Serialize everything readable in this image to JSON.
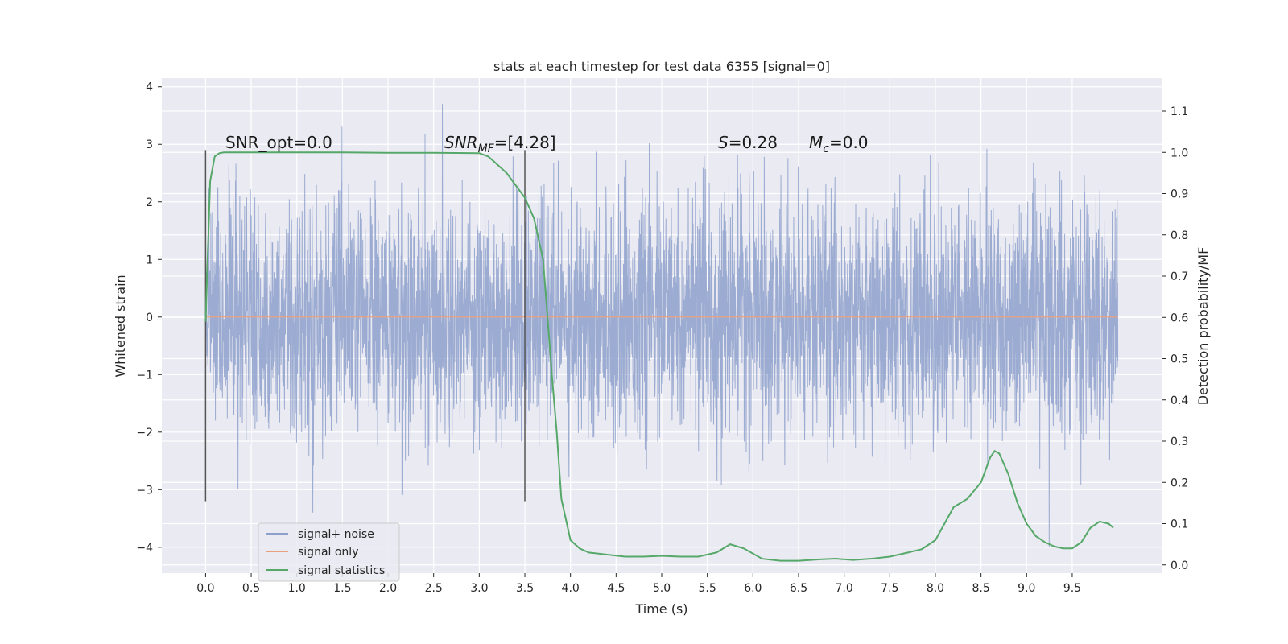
{
  "chart_data": {
    "type": "line",
    "title": "stats at each timestep for test data 6355 [signal=0]",
    "xlabel": "Time (s)",
    "ylabel": "Whitened strain",
    "y2label": "Detection probability/MF",
    "xlim": [
      -0.48,
      10.48
    ],
    "ylim": [
      -4.45,
      4.15
    ],
    "y2lim": [
      -0.02,
      1.18
    ],
    "x_ticks": [
      "0.0",
      "0.5",
      "1.0",
      "1.5",
      "2.0",
      "2.5",
      "3.0",
      "3.5",
      "4.0",
      "4.5",
      "5.0",
      "5.5",
      "6.0",
      "6.5",
      "7.0",
      "7.5",
      "8.0",
      "8.5",
      "9.0",
      "9.5"
    ],
    "y_ticks": [
      "−4",
      "−3",
      "−2",
      "−1",
      "0",
      "1",
      "2",
      "3",
      "4"
    ],
    "y2_ticks": [
      "0.0",
      "0.1",
      "0.2",
      "0.3",
      "0.4",
      "0.5",
      "0.6",
      "0.7",
      "0.8",
      "0.9",
      "1.0",
      "1.1"
    ],
    "grid": true,
    "legend_placement": "lower-left",
    "annotations": {
      "snr_opt": "SNR_opt=0.0",
      "snr_mf_base": "SNR",
      "snr_mf_sub": "MF",
      "snr_mf_value": "=[4.28]",
      "s_label": "S",
      "s_value": "=0.28",
      "mc_label": "M",
      "mc_sub": "c",
      "mc_value": "=0.0"
    },
    "vertical_markers_x": [
      0.0,
      3.5
    ],
    "series": [
      {
        "name": "signal+ noise",
        "color": "#8da0cb",
        "noise_std": 1.0,
        "x_range": [
          0.0,
          10.0
        ]
      },
      {
        "name": "signal only",
        "color": "#e8a07f",
        "x": [
          0.0,
          10.0
        ],
        "y": [
          0.0,
          0.0
        ]
      },
      {
        "name": "signal statistics",
        "color": "#55a868",
        "x": [
          0.0,
          0.05,
          0.1,
          0.15,
          0.2,
          0.3,
          0.5,
          1.0,
          1.5,
          2.0,
          2.5,
          3.0,
          3.1,
          3.2,
          3.3,
          3.4,
          3.5,
          3.6,
          3.7,
          3.8,
          3.85,
          3.9,
          4.0,
          4.1,
          4.2,
          4.4,
          4.6,
          4.8,
          5.0,
          5.2,
          5.4,
          5.6,
          5.75,
          5.9,
          6.1,
          6.3,
          6.5,
          6.7,
          6.9,
          7.1,
          7.3,
          7.5,
          7.7,
          7.85,
          8.0,
          8.1,
          8.2,
          8.35,
          8.5,
          8.6,
          8.65,
          8.7,
          8.8,
          8.9,
          9.0,
          9.1,
          9.2,
          9.3,
          9.4,
          9.5,
          9.6,
          9.7,
          9.8,
          9.9,
          9.95
        ],
        "y": [
          0.59,
          0.93,
          0.99,
          0.998,
          1.0,
          1.0,
          1.0,
          1.0,
          1.0,
          0.999,
          0.999,
          0.998,
          0.99,
          0.97,
          0.95,
          0.92,
          0.89,
          0.84,
          0.74,
          0.45,
          0.32,
          0.16,
          0.06,
          0.04,
          0.03,
          0.025,
          0.02,
          0.02,
          0.022,
          0.02,
          0.02,
          0.03,
          0.05,
          0.04,
          0.015,
          0.01,
          0.01,
          0.013,
          0.015,
          0.012,
          0.015,
          0.02,
          0.03,
          0.038,
          0.06,
          0.1,
          0.14,
          0.16,
          0.2,
          0.26,
          0.276,
          0.27,
          0.22,
          0.15,
          0.1,
          0.07,
          0.055,
          0.045,
          0.04,
          0.04,
          0.055,
          0.09,
          0.105,
          0.1,
          0.09
        ]
      }
    ]
  }
}
